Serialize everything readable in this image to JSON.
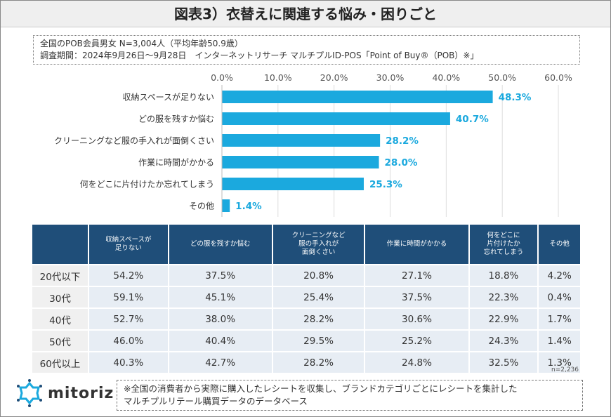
{
  "title": "図表3）衣替えに関連する悩み・困りごと",
  "info": {
    "line1": "全国のPOB会員男女 N=3,004人（平均年齢50.9歳）",
    "line2": "調査期間：2024年9月26日～9月28日　インターネットリサーチ マルチプルID-POS「Point of Buy®（POB）※」"
  },
  "colors": {
    "bar": "#1ba9de",
    "header": "#1f4e79",
    "cell": "#e7edf4"
  },
  "chart_data": {
    "type": "bar",
    "orientation": "horizontal",
    "categories": [
      "収納スペースが足りない",
      "どの服を残すか悩む",
      "クリーニングなど服の手入れが面倒くさい",
      "作業に時間がかかる",
      "何をどこに片付けたか忘れてしまう",
      "その他"
    ],
    "values": [
      48.3,
      40.7,
      28.2,
      28.0,
      25.3,
      1.4
    ],
    "value_labels": [
      "48.3%",
      "40.7%",
      "28.2%",
      "28.0%",
      "25.3%",
      "1.4%"
    ],
    "xlim": [
      0,
      60
    ],
    "ticks": [
      "0.0%",
      "10.0%",
      "20.0%",
      "30.0%",
      "40.0%",
      "50.0%",
      "60.0%"
    ],
    "axis_position": "top",
    "grid": true
  },
  "table": {
    "headers": [
      "収納スペースが\n足りない",
      "どの服を残すか悩む",
      "クリーニングなど\n服の手入れが\n面倒くさい",
      "作業に時間がかかる",
      "何をどこに\n片付けたか\n忘れてしまう",
      "その他"
    ],
    "rows": [
      {
        "label": "20代以下",
        "values": [
          "54.2%",
          "37.5%",
          "20.8%",
          "27.1%",
          "18.8%",
          "4.2%"
        ]
      },
      {
        "label": "30代",
        "values": [
          "59.1%",
          "45.1%",
          "25.4%",
          "37.5%",
          "22.3%",
          "0.4%"
        ]
      },
      {
        "label": "40代",
        "values": [
          "52.7%",
          "38.0%",
          "28.2%",
          "30.6%",
          "22.9%",
          "1.7%"
        ]
      },
      {
        "label": "50代",
        "values": [
          "46.0%",
          "40.4%",
          "29.5%",
          "25.2%",
          "24.3%",
          "1.4%"
        ]
      },
      {
        "label": "60代以上",
        "values": [
          "40.3%",
          "42.7%",
          "28.2%",
          "24.8%",
          "32.5%",
          "1.3%"
        ]
      }
    ],
    "n": "n=2,236"
  },
  "logo": "mitoriz",
  "note": {
    "line1": "※全国の消費者から実際に購入したレシートを収集し、ブランドカテゴリごとにレシートを集計した",
    "line2": "マルチプルリテール購買データのデータベース"
  }
}
